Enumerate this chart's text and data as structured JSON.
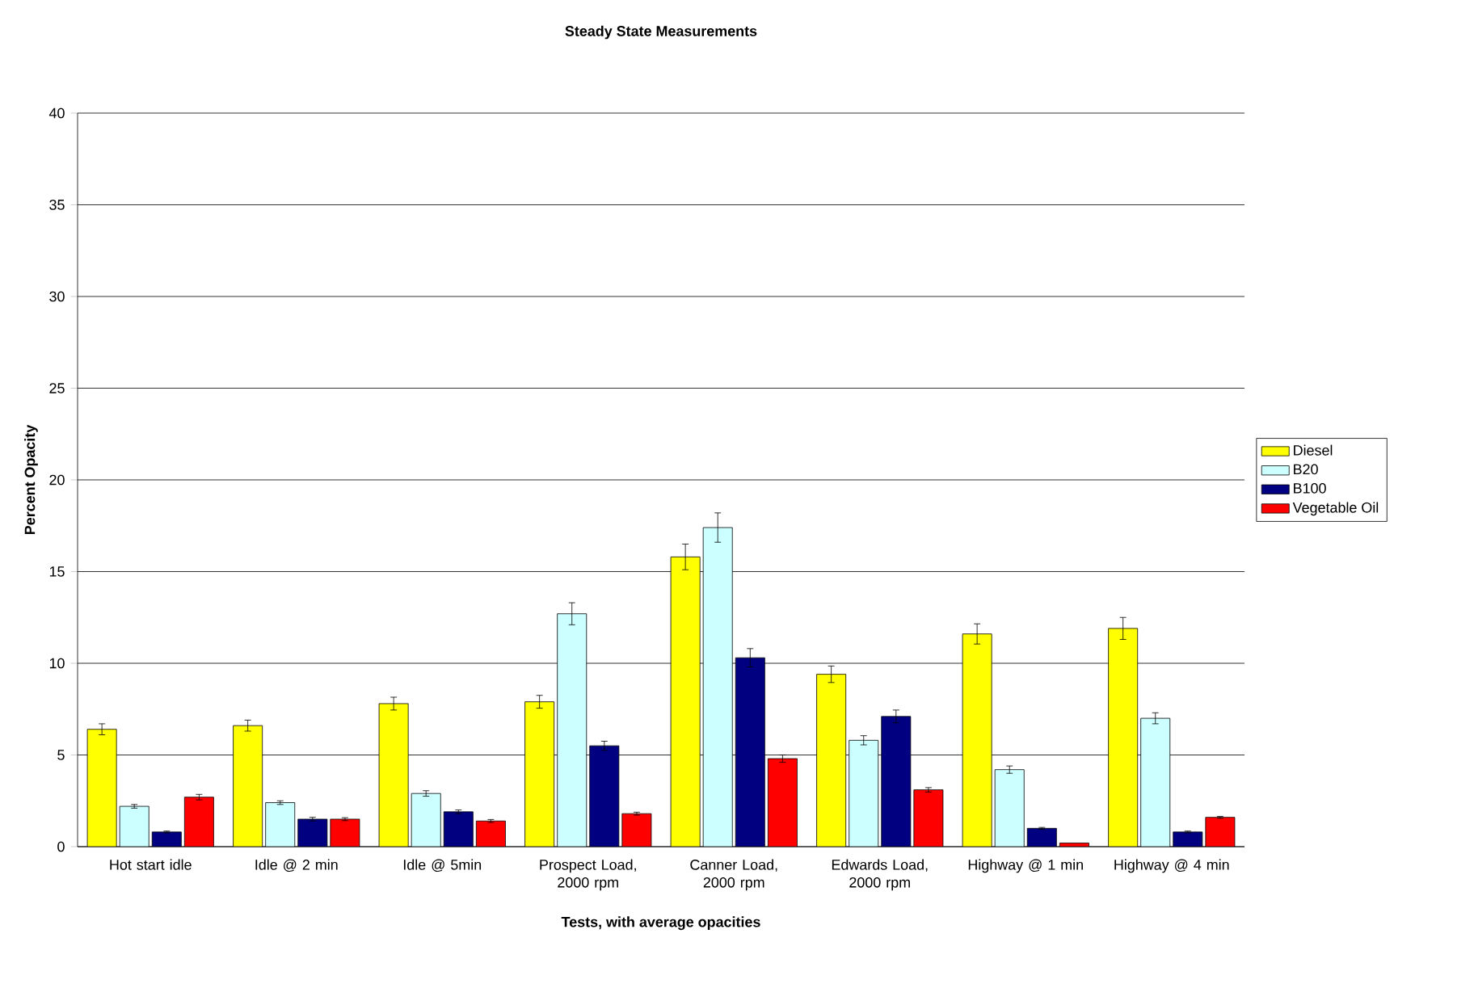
{
  "chart_data": {
    "type": "bar",
    "title": "Steady State Measurements",
    "xlabel": "Tests, with average opacities",
    "ylabel": "Percent Opacity",
    "categories": [
      "Hot start idle",
      "Idle @ 2 min",
      "Idle @ 5min",
      "Prospect Load, 2000 rpm",
      "Canner Load, 2000 rpm",
      "Edwards Load, 2000 rpm",
      "Highway @ 1 min",
      "Highway @ 4 min"
    ],
    "series": [
      {
        "name": "Diesel",
        "color": "#ffff00",
        "values": [
          6.4,
          6.6,
          7.8,
          7.9,
          15.8,
          9.4,
          11.6,
          11.9
        ],
        "errors": [
          0.3,
          0.3,
          0.35,
          0.35,
          0.7,
          0.45,
          0.55,
          0.6
        ]
      },
      {
        "name": "B20",
        "color": "#ccffff",
        "values": [
          2.2,
          2.4,
          2.9,
          12.7,
          17.4,
          5.8,
          4.2,
          7.0
        ],
        "errors": [
          0.1,
          0.1,
          0.15,
          0.6,
          0.8,
          0.25,
          0.2,
          0.3
        ]
      },
      {
        "name": "B100",
        "color": "#000080",
        "values": [
          0.8,
          1.5,
          1.9,
          5.5,
          10.3,
          7.1,
          1.0,
          0.8
        ],
        "errors": [
          0.05,
          0.1,
          0.1,
          0.25,
          0.5,
          0.35,
          0.05,
          0.05
        ]
      },
      {
        "name": "Vegetable Oil",
        "color": "#ff0000",
        "values": [
          2.7,
          1.5,
          1.4,
          1.8,
          4.8,
          3.1,
          0.2,
          1.6
        ],
        "errors": [
          0.15,
          0.08,
          0.08,
          0.08,
          0.2,
          0.12,
          null,
          0.05
        ]
      }
    ],
    "ylim": [
      0,
      40
    ],
    "yticks": [
      0,
      5,
      10,
      15,
      20,
      25,
      30,
      35,
      40
    ],
    "grid": "y",
    "legend": "right"
  }
}
